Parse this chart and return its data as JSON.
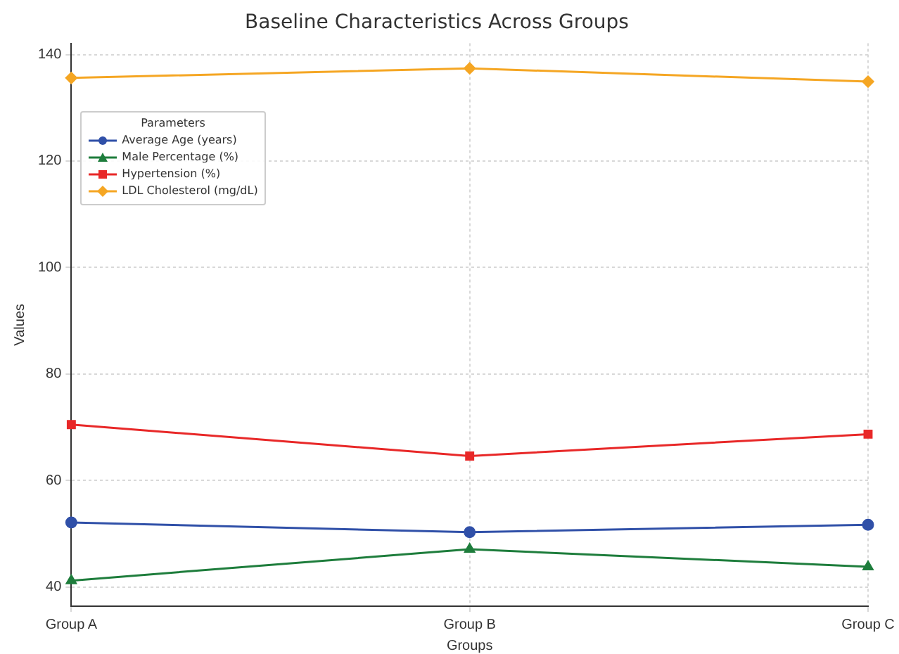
{
  "chart_data": {
    "type": "line",
    "title": "Baseline Characteristics Across Groups",
    "xlabel": "Groups",
    "ylabel": "Values",
    "legend_title": "Parameters",
    "categories": [
      "Group A",
      "Group B",
      "Group C"
    ],
    "series": [
      {
        "name": "Average Age (years)",
        "color": "#3050a8",
        "marker": "circle",
        "values": [
          52.1,
          50.3,
          51.7
        ]
      },
      {
        "name": "Male Percentage (%)",
        "color": "#1e7d3c",
        "marker": "triangle",
        "values": [
          41.2,
          47.1,
          43.8
        ]
      },
      {
        "name": "Hypertension (%)",
        "color": "#e82828",
        "marker": "square",
        "values": [
          70.5,
          64.6,
          68.7
        ]
      },
      {
        "name": "LDL Cholesterol (mg/dL)",
        "color": "#f5a623",
        "marker": "diamond",
        "values": [
          135.6,
          137.4,
          134.9
        ]
      }
    ],
    "ylim": [
      36.4,
      142.1
    ],
    "yticks": [
      40,
      60,
      80,
      100,
      120,
      140
    ],
    "grid": true,
    "legend": "top left"
  }
}
